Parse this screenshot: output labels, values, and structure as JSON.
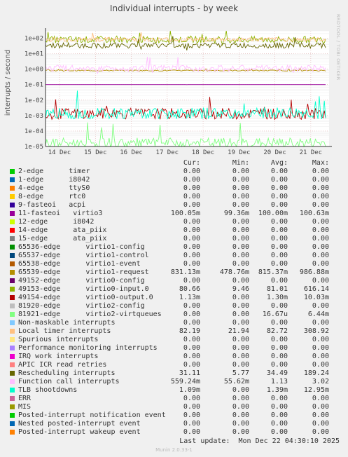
{
  "chart_data": {
    "type": "line",
    "title": "Individual interrupts - by week",
    "ylabel": "interrupts / second",
    "yscale": "log",
    "ylim": [
      1e-05,
      300
    ],
    "yticks": [
      "1e-05",
      "1e-04",
      "1e-03",
      "1e-02",
      "1e-01",
      "1e+00",
      "1e+01",
      "1e+02"
    ],
    "x_ticks": [
      "14 Dec",
      "15 Dec",
      "16 Dec",
      "17 Dec",
      "18 Dec",
      "19 Dec",
      "20 Dec",
      "21 Dec"
    ],
    "grid": true,
    "series": [
      {
        "name": "2-edge      timer",
        "color": "#00cc00",
        "cur": "0.00",
        "min": "0.00",
        "avg": "0.00",
        "max": "0.00"
      },
      {
        "name": "1-edge      i8042",
        "color": "#0066b3",
        "cur": "0.00",
        "min": "0.00",
        "avg": "0.00",
        "max": "0.00"
      },
      {
        "name": "4-edge      ttyS0",
        "color": "#ff8000",
        "cur": "0.00",
        "min": "0.00",
        "avg": "0.00",
        "max": "0.00"
      },
      {
        "name": "8-edge      rtc0",
        "color": "#ffcc00",
        "cur": "0.00",
        "min": "0.00",
        "avg": "0.00",
        "max": "0.00"
      },
      {
        "name": "9-fasteoi   acpi",
        "color": "#330099",
        "cur": "0.00",
        "min": "0.00",
        "avg": "0.00",
        "max": "0.00"
      },
      {
        "name": "11-fasteoi   virtio3",
        "color": "#990099",
        "cur": "100.05m",
        "min": "99.36m",
        "avg": "100.00m",
        "max": "100.63m"
      },
      {
        "name": "12-edge      i8042",
        "color": "#ccff00",
        "cur": "0.00",
        "min": "0.00",
        "avg": "0.00",
        "max": "0.00"
      },
      {
        "name": "14-edge      ata_piix",
        "color": "#ff0000",
        "cur": "0.00",
        "min": "0.00",
        "avg": "0.00",
        "max": "0.00"
      },
      {
        "name": "15-edge      ata_piix",
        "color": "#808080",
        "cur": "0.00",
        "min": "0.00",
        "avg": "0.00",
        "max": "0.00"
      },
      {
        "name": "65536-edge      virtio1-config",
        "color": "#008f00",
        "cur": "0.00",
        "min": "0.00",
        "avg": "0.00",
        "max": "0.00"
      },
      {
        "name": "65537-edge      virtio1-control",
        "color": "#00487d",
        "cur": "0.00",
        "min": "0.00",
        "avg": "0.00",
        "max": "0.00"
      },
      {
        "name": "65538-edge      virtio1-event",
        "color": "#b35a00",
        "cur": "0.00",
        "min": "0.00",
        "avg": "0.00",
        "max": "0.00"
      },
      {
        "name": "65539-edge      virtio1-request",
        "color": "#b38f00",
        "cur": "831.13m",
        "min": "478.76m",
        "avg": "815.37m",
        "max": "986.88m"
      },
      {
        "name": "49152-edge      virtio0-config",
        "color": "#6b006b",
        "cur": "0.00",
        "min": "0.00",
        "avg": "0.00",
        "max": "0.00"
      },
      {
        "name": "49153-edge      virtio0-input.0",
        "color": "#8fb300",
        "cur": "80.66",
        "min": "9.46",
        "avg": "81.01",
        "max": "616.14"
      },
      {
        "name": "49154-edge      virtio0-output.0",
        "color": "#b30000",
        "cur": "1.13m",
        "min": "0.00",
        "avg": "1.30m",
        "max": "10.03m"
      },
      {
        "name": "81920-edge      virtio2-config",
        "color": "#bebebe",
        "cur": "0.00",
        "min": "0.00",
        "avg": "0.00",
        "max": "0.00"
      },
      {
        "name": "81921-edge      virtio2-virtqueues",
        "color": "#80ff80",
        "cur": "0.00",
        "min": "0.00",
        "avg": "16.67u",
        "max": "6.44m"
      },
      {
        "name": "Non-maskable interrupts",
        "color": "#80c9ff",
        "cur": "0.00",
        "min": "0.00",
        "avg": "0.00",
        "max": "0.00"
      },
      {
        "name": "Local timer interrupts",
        "color": "#ffc080",
        "cur": "82.19",
        "min": "21.94",
        "avg": "82.72",
        "max": "308.92"
      },
      {
        "name": "Spurious interrupts",
        "color": "#ffe680",
        "cur": "0.00",
        "min": "0.00",
        "avg": "0.00",
        "max": "0.00"
      },
      {
        "name": "Performance monitoring interrupts",
        "color": "#aa80ff",
        "cur": "0.00",
        "min": "0.00",
        "avg": "0.00",
        "max": "0.00"
      },
      {
        "name": "IRQ work interrupts",
        "color": "#ee00cc",
        "cur": "0.00",
        "min": "0.00",
        "avg": "0.00",
        "max": "0.00"
      },
      {
        "name": "APIC ICR read retries",
        "color": "#ff8080",
        "cur": "0.00",
        "min": "0.00",
        "avg": "0.00",
        "max": "0.00"
      },
      {
        "name": "Rescheduling interrupts",
        "color": "#666600",
        "cur": "31.11",
        "min": "5.77",
        "avg": "34.49",
        "max": "189.24"
      },
      {
        "name": "Function call interrupts",
        "color": "#ffbfff",
        "cur": "559.24m",
        "min": "55.62m",
        "avg": "1.13",
        "max": "3.02"
      },
      {
        "name": "TLB shootdowns",
        "color": "#00ffcc",
        "cur": "1.09m",
        "min": "0.00",
        "avg": "1.39m",
        "max": "12.95m"
      },
      {
        "name": "ERR",
        "color": "#cc6699",
        "cur": "0.00",
        "min": "0.00",
        "avg": "0.00",
        "max": "0.00"
      },
      {
        "name": "MIS",
        "color": "#999900",
        "cur": "0.00",
        "min": "0.00",
        "avg": "0.00",
        "max": "0.00"
      },
      {
        "name": "Posted-interrupt notification event",
        "color": "#00cc00",
        "cur": "0.00",
        "min": "0.00",
        "avg": "0.00",
        "max": "0.00"
      },
      {
        "name": "Nested posted-interrupt event",
        "color": "#0066b3",
        "cur": "0.00",
        "min": "0.00",
        "avg": "0.00",
        "max": "0.00"
      },
      {
        "name": "Posted-interrupt wakeup event",
        "color": "#ff8000",
        "cur": "0.00",
        "min": "0.00",
        "avg": "0.00",
        "max": "0.00"
      }
    ]
  },
  "legend": {
    "cur_label": "Cur:",
    "min_label": "Min:",
    "avg_label": "Avg:",
    "max_label": "Max:"
  },
  "footer": {
    "last_update": "Last update:  Mon Dec 22 04:30:10 2025",
    "munin_version": "Munin 2.0.33-1",
    "side_label": "RRDTOOL / TOBI OETIKER"
  }
}
